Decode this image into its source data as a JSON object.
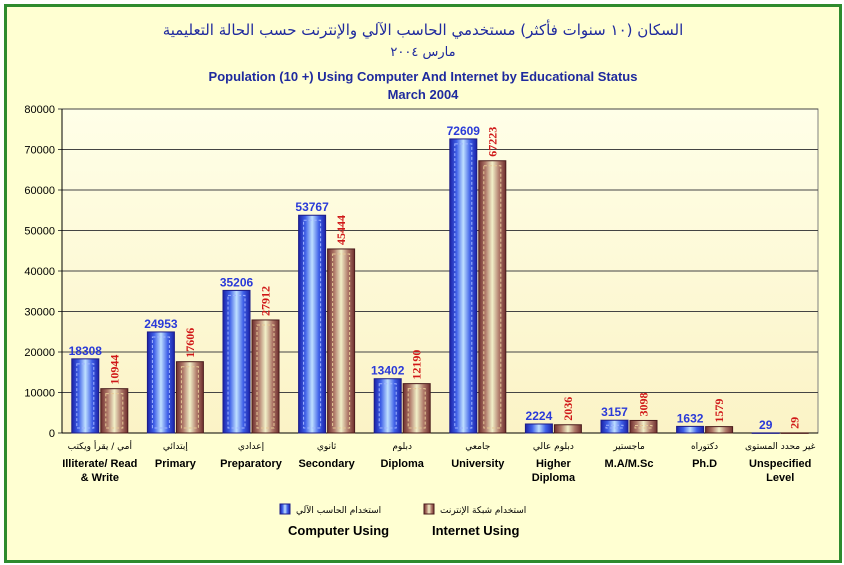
{
  "chart_data": {
    "type": "bar",
    "title_ar": "السكان (١٠ سنوات فأكثر) مستخدمي الحاسب الآلي والإنترنت حسب الحالة التعليمية",
    "subtitle_ar": "مارس ٢٠٠٤",
    "title": "Population (10 +) Using Computer And Internet by Educational Status",
    "subtitle": "March 2004",
    "ylim": [
      0,
      80000
    ],
    "yticks": [
      "0",
      "10000",
      "20000",
      "30000",
      "40000",
      "50000",
      "60000",
      "70000",
      "80000"
    ],
    "grid": true,
    "legend_position": "bottom-center",
    "categories": [
      {
        "ar": "أمي / يقرأ ويكتب",
        "en": [
          "Illiterate/ Read",
          "& Write"
        ]
      },
      {
        "ar": "إبتدائي",
        "en": [
          "Primary"
        ]
      },
      {
        "ar": "إعدادي",
        "en": [
          "Preparatory"
        ]
      },
      {
        "ar": "ثانوي",
        "en": [
          "Secondary"
        ]
      },
      {
        "ar": "دبلوم",
        "en": [
          "Diploma"
        ]
      },
      {
        "ar": "جامعي",
        "en": [
          "University"
        ]
      },
      {
        "ar": "دبلوم عالي",
        "en": [
          "Higher",
          "Diploma"
        ]
      },
      {
        "ar": "ماجستير",
        "en": [
          "M.A/M.Sc"
        ]
      },
      {
        "ar": "دكتوراه",
        "en": [
          "Ph.D"
        ]
      },
      {
        "ar": "غير محدد المستوى",
        "en": [
          "Unspecified",
          "Level"
        ]
      }
    ],
    "series": [
      {
        "name": "Computer Using",
        "name_ar": "استخدام الحاسب الآلي",
        "color": "#2a3ad8",
        "label_color": "#2a3ad8",
        "values": [
          18308,
          24953,
          35206,
          53767,
          13402,
          72609,
          2224,
          3157,
          1632,
          29
        ]
      },
      {
        "name": "Internet Using",
        "name_ar": "استخدام شبكة الإنترنت",
        "color": "#8a4a4a",
        "label_color": "#d01818",
        "values": [
          10944,
          17606,
          27912,
          45444,
          12190,
          67223,
          2036,
          3098,
          1579,
          29
        ]
      }
    ]
  }
}
